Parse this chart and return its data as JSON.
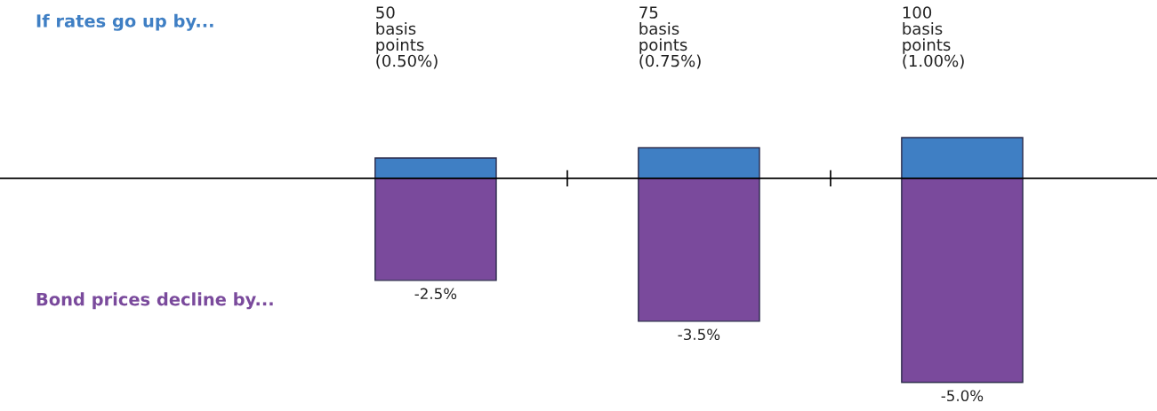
{
  "chart_data": {
    "type": "bar",
    "categories": [
      "50\nbasis\npoints\n(0.50%)",
      "75\nbasis\npoints\n(0.75%)",
      "100\nbasis\npoints\n(1.00%)"
    ],
    "series": [
      {
        "name": "If rates go up by...",
        "color": "#3f7fc4",
        "values": [
          0.5,
          0.75,
          1.0
        ]
      },
      {
        "name": "Bond prices decline by...",
        "color": "#7a4a9c",
        "values": [
          -2.5,
          -3.5,
          -5.0
        ],
        "value_labels": [
          "-2.5%",
          "-3.5%",
          "-5.0%"
        ]
      }
    ],
    "stacked": true,
    "ylim": [
      -5.7,
      4.37
    ],
    "tick_labels": "x",
    "grid": false,
    "legend": "left"
  }
}
